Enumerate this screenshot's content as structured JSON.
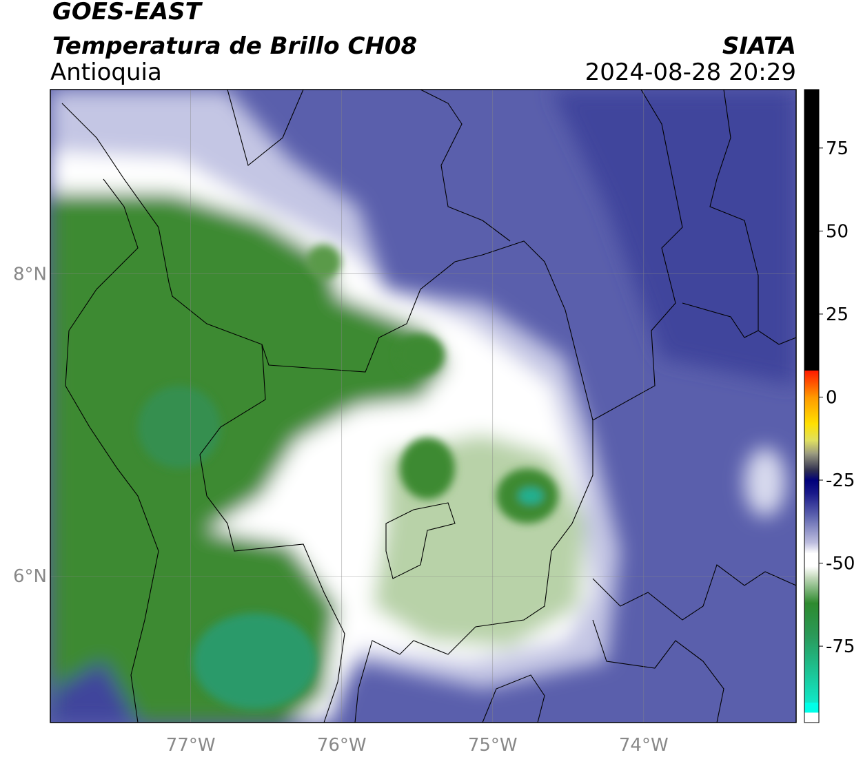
{
  "header": {
    "title": "GOES-EAST",
    "subtitle": "Temperatura de Brillo CH08",
    "region": "Antioquia",
    "source": "SIATA",
    "datetime": "2024-08-28 20:29"
  },
  "map": {
    "xlim": [
      -77.93,
      -72.99
    ],
    "ylim": [
      5.03,
      9.22
    ],
    "xticks": [
      {
        "value": -77,
        "label": "77°W"
      },
      {
        "value": -76,
        "label": "76°W"
      },
      {
        "value": -75,
        "label": "75°W"
      },
      {
        "value": -74,
        "label": "74°W"
      }
    ],
    "yticks": [
      {
        "value": 6,
        "label": "6°N"
      },
      {
        "value": 8,
        "label": "8°N"
      }
    ],
    "grid": true
  },
  "colorbar": {
    "clim": [
      -98,
      92.6
    ],
    "ticks": [
      -75,
      -50,
      -25,
      0,
      25,
      50,
      75
    ],
    "stops": [
      {
        "value": 92.6,
        "color": "#000000"
      },
      {
        "value": 8,
        "color": "#000000"
      },
      {
        "value": 8,
        "color": "#ff1a00"
      },
      {
        "value": 0,
        "color": "#ff9900"
      },
      {
        "value": -8,
        "color": "#ffe000"
      },
      {
        "value": -13,
        "color": "#e0e060"
      },
      {
        "value": -17,
        "color": "#9a9a80"
      },
      {
        "value": -22,
        "color": "#303050"
      },
      {
        "value": -25,
        "color": "#00007a"
      },
      {
        "value": -29,
        "color": "#1a1a8a"
      },
      {
        "value": -36,
        "color": "#6066b0"
      },
      {
        "value": -44,
        "color": "#c0c0e0"
      },
      {
        "value": -47,
        "color": "#ffffff"
      },
      {
        "value": -51,
        "color": "#ffffff"
      },
      {
        "value": -54,
        "color": "#c8dcc0"
      },
      {
        "value": -62,
        "color": "#2e8a2e"
      },
      {
        "value": -72,
        "color": "#2a9a5a"
      },
      {
        "value": -92,
        "color": "#10e8c8"
      },
      {
        "value": -92,
        "color": "#00ffe8"
      },
      {
        "value": -95,
        "color": "#00ffe8"
      },
      {
        "value": -95,
        "color": "#ffffff"
      },
      {
        "value": -98,
        "color": "#ffffff"
      }
    ]
  }
}
